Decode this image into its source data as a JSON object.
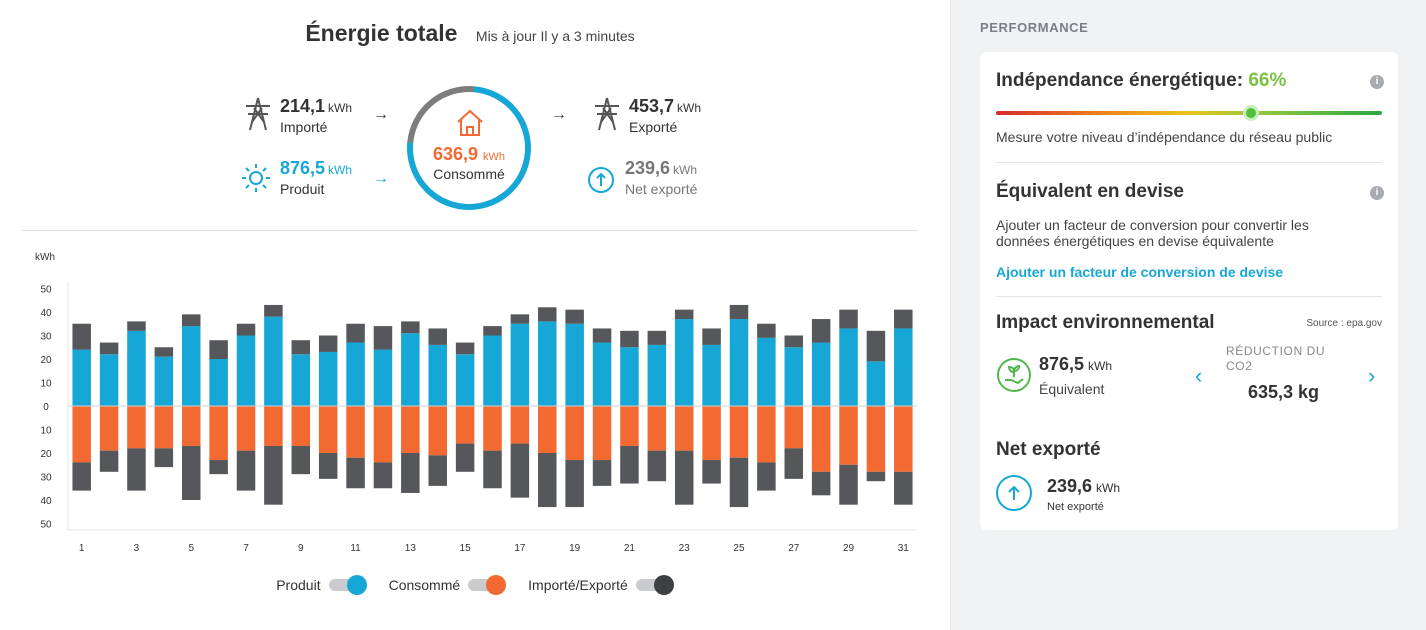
{
  "header": {
    "title": "Énergie totale",
    "updated": "Mis à jour Il y a 3 minutes"
  },
  "stats": {
    "imported": {
      "value": "214,1",
      "unit": "kWh",
      "label": "Importé"
    },
    "produced": {
      "value": "876,5",
      "unit": "kWh",
      "label": "Produit"
    },
    "consumed": {
      "value": "636,9",
      "unit": "kWh",
      "label": "Consommé"
    },
    "exported": {
      "value": "453,7",
      "unit": "kWh",
      "label": "Exporté"
    },
    "net_exported": {
      "value": "239,6",
      "unit": "kWh",
      "label": "Net exporté"
    },
    "arrow": "→"
  },
  "colors": {
    "produced": "#16a7d6",
    "consumed": "#f26a32",
    "grid": "#55575b",
    "gauge_knob": "#4fc338",
    "independence": "#7cc142"
  },
  "chart_data": {
    "type": "bar",
    "ylabel": "kWh",
    "ylim": [
      -50,
      50
    ],
    "yticks": [
      "50",
      "40",
      "30",
      "20",
      "10",
      "0",
      "10",
      "20",
      "30",
      "40",
      "50"
    ],
    "x": [
      "1",
      "2",
      "3",
      "4",
      "5",
      "6",
      "7",
      "8",
      "9",
      "10",
      "11",
      "12",
      "13",
      "14",
      "15",
      "16",
      "17",
      "18",
      "19",
      "20",
      "21",
      "22",
      "23",
      "24",
      "25",
      "26",
      "27",
      "28",
      "29",
      "30",
      "31"
    ],
    "xticks_shown": [
      "1",
      "3",
      "5",
      "7",
      "9",
      "11",
      "13",
      "15",
      "17",
      "19",
      "21",
      "23",
      "25",
      "27",
      "29",
      "31"
    ],
    "series": [
      {
        "name": "Produit",
        "values": [
          24,
          22,
          32,
          21,
          34,
          20,
          30,
          38,
          22,
          23,
          27,
          24,
          31,
          26,
          22,
          30,
          35,
          36,
          35,
          27,
          25,
          26,
          37,
          26,
          37,
          29,
          25,
          27,
          33,
          19,
          33
        ]
      },
      {
        "name": "Importé/Exporté",
        "values": [
          11,
          5,
          4,
          4,
          5,
          8,
          5,
          5,
          6,
          7,
          8,
          10,
          5,
          7,
          5,
          4,
          4,
          6,
          6,
          6,
          7,
          6,
          4,
          7,
          6,
          6,
          5,
          10,
          8,
          13,
          8
        ]
      },
      {
        "name": "Consommé",
        "values": [
          -24,
          -19,
          -18,
          -18,
          -17,
          -23,
          -19,
          -17,
          -17,
          -20,
          -22,
          -24,
          -20,
          -21,
          -16,
          -19,
          -16,
          -20,
          -23,
          -23,
          -17,
          -19,
          -19,
          -23,
          -22,
          -24,
          -18,
          -28,
          -25,
          -28,
          -28
        ]
      },
      {
        "name": "Importé/Exporté",
        "values": [
          -12,
          -9,
          -18,
          -8,
          -23,
          -6,
          -17,
          -25,
          -12,
          -11,
          -13,
          -11,
          -17,
          -13,
          -12,
          -16,
          -23,
          -23,
          -20,
          -11,
          -16,
          -13,
          -23,
          -10,
          -21,
          -12,
          -13,
          -10,
          -17,
          -4,
          -14
        ]
      }
    ]
  },
  "legend": {
    "produced": "Produit",
    "consumed": "Consommé",
    "grid": "Importé/Exporté"
  },
  "performance": {
    "title": "PERFORMANCE",
    "independence": {
      "label": "Indépendance énergétique:",
      "value": "66%",
      "level": 0.66,
      "description": "Mesure votre niveau d’indépendance du réseau public"
    },
    "currency": {
      "title": "Équivalent en devise",
      "description_1": "Ajouter un facteur de conversion pour convertir les",
      "description_2": "données énergétiques en devise équivalente",
      "link": "Ajouter un facteur de conversion de devise"
    },
    "environment": {
      "title": "Impact environnemental",
      "source": "Source : epa.gov",
      "value": "876,5",
      "unit": "kWh",
      "label": "Équivalent",
      "reduction_label_1": "RÉDUCTION DU",
      "reduction_label_2": "CO2",
      "reduction_value": "635,3 kg",
      "prev": "‹",
      "next": "›"
    },
    "net": {
      "title": "Net exporté",
      "value": "239,6",
      "unit": "kWh",
      "label": "Net exporté"
    }
  }
}
